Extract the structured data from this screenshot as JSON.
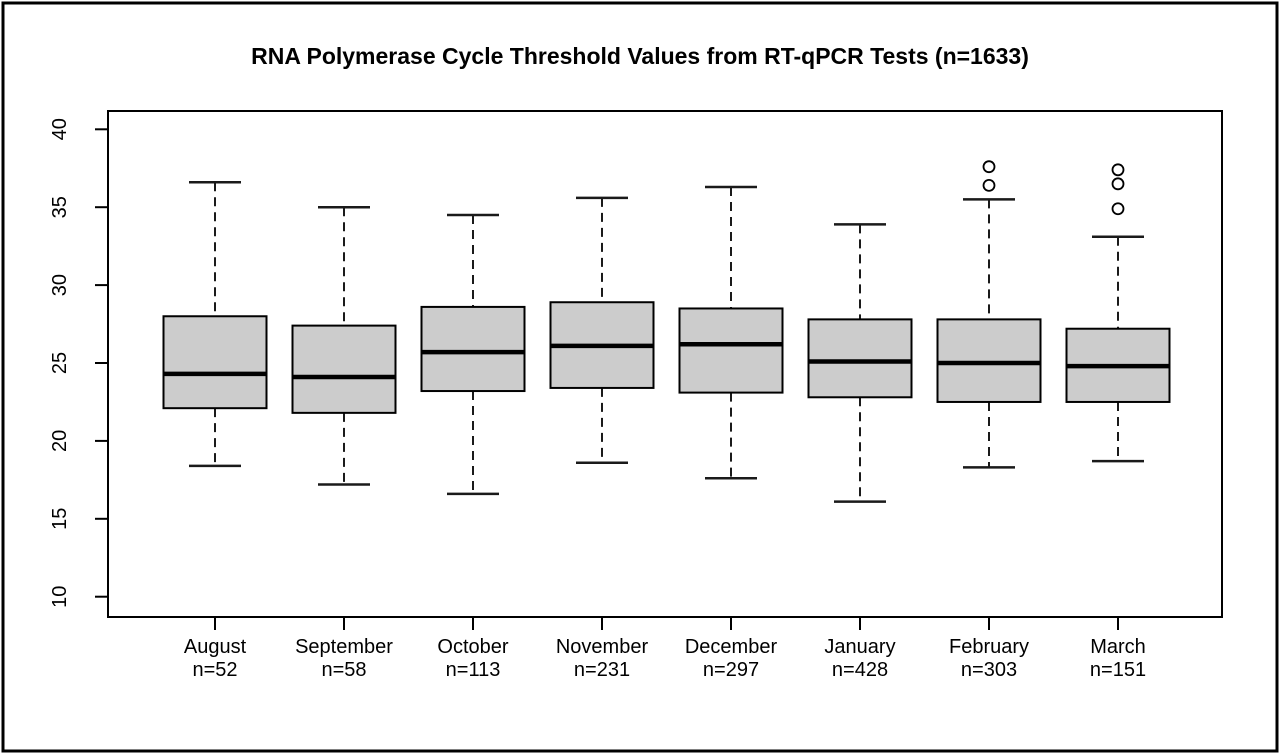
{
  "title": "RNA Polymerase Cycle Threshold Values from RT-qPCR Tests (n=1633)",
  "colors": {
    "background": "#ffffff",
    "frame": "#000000",
    "panel_border": "#000000",
    "box_fill": "#cccccc",
    "box_border": "#000000",
    "median": "#000000",
    "whisker": "#1a1a1a",
    "outlier_stroke": "#000000",
    "text": "#000000"
  },
  "chart_data": {
    "type": "boxplot",
    "title": "RNA Polymerase Cycle Threshold Values from RT-qPCR Tests (n=1633)",
    "xlabel": "",
    "ylabel": "",
    "ylim": [
      8.7,
      41.1
    ],
    "yticks": [
      10,
      15,
      20,
      25,
      30,
      35,
      40
    ],
    "grid": false,
    "legend": "none",
    "total_n": 1633,
    "categories": [
      "August",
      "September",
      "October",
      "November",
      "December",
      "January",
      "February",
      "March"
    ],
    "sample_size_labels": [
      "n=52",
      "n=58",
      "n=113",
      "n=231",
      "n=297",
      "n=428",
      "n=303",
      "n=151"
    ],
    "series": [
      {
        "name": "August",
        "n": 52,
        "whisker_low": 18.4,
        "q1": 22.1,
        "median": 24.3,
        "q3": 28.0,
        "whisker_high": 36.6,
        "outliers": []
      },
      {
        "name": "September",
        "n": 58,
        "whisker_low": 17.2,
        "q1": 21.8,
        "median": 24.1,
        "q3": 27.4,
        "whisker_high": 35.0,
        "outliers": []
      },
      {
        "name": "October",
        "n": 113,
        "whisker_low": 16.6,
        "q1": 23.2,
        "median": 25.7,
        "q3": 28.6,
        "whisker_high": 34.5,
        "outliers": []
      },
      {
        "name": "November",
        "n": 231,
        "whisker_low": 18.6,
        "q1": 23.4,
        "median": 26.1,
        "q3": 28.9,
        "whisker_high": 35.6,
        "outliers": []
      },
      {
        "name": "December",
        "n": 297,
        "whisker_low": 17.6,
        "q1": 23.1,
        "median": 26.2,
        "q3": 28.5,
        "whisker_high": 36.3,
        "outliers": []
      },
      {
        "name": "January",
        "n": 428,
        "whisker_low": 16.1,
        "q1": 22.8,
        "median": 25.1,
        "q3": 27.8,
        "whisker_high": 33.9,
        "outliers": []
      },
      {
        "name": "February",
        "n": 303,
        "whisker_low": 18.3,
        "q1": 22.5,
        "median": 25.0,
        "q3": 27.8,
        "whisker_high": 35.5,
        "outliers": [
          36.4,
          37.6
        ]
      },
      {
        "name": "March",
        "n": 151,
        "whisker_low": 18.7,
        "q1": 22.5,
        "median": 24.8,
        "q3": 27.2,
        "whisker_high": 33.1,
        "outliers": [
          34.9,
          36.5,
          37.4
        ]
      }
    ]
  }
}
